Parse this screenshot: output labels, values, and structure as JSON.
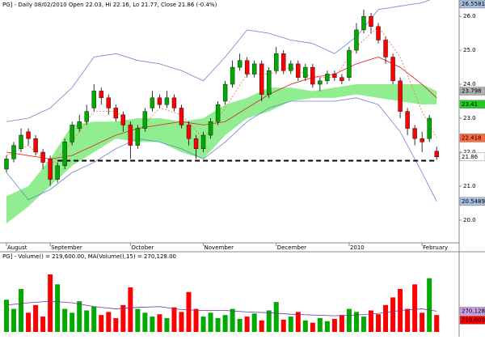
{
  "chart_data": {
    "type": "candlestick",
    "title": "PG] - Daily 08/02/2010 Open 22.03, Hi 22.16, Lo 21.77, Close 21.86 (-0.4%)",
    "categories": [
      "August",
      null,
      null,
      null,
      null,
      null,
      "September",
      null,
      null,
      null,
      null,
      null,
      null,
      null,
      null,
      null,
      null,
      "October",
      null,
      null,
      null,
      null,
      null,
      null,
      null,
      null,
      null,
      "November",
      null,
      null,
      null,
      null,
      null,
      null,
      null,
      null,
      null,
      "December",
      null,
      null,
      null,
      null,
      null,
      null,
      null,
      null,
      null,
      "2010",
      null,
      null,
      null,
      null,
      null,
      null,
      null,
      null,
      null,
      "February",
      null,
      null
    ],
    "open": [
      21.5,
      21.8,
      22.1,
      22.6,
      22.4,
      22.0,
      21.8,
      21.2,
      21.6,
      22.3,
      22.7,
      22.9,
      23.3,
      23.8,
      23.6,
      23.3,
      23.1,
      22.8,
      22.2,
      22.7,
      23.3,
      23.6,
      23.4,
      23.6,
      23.3,
      22.8,
      22.4,
      22.1,
      22.5,
      22.9,
      23.5,
      24.0,
      24.5,
      24.7,
      24.3,
      24.6,
      23.7,
      24.4,
      24.9,
      24.4,
      24.6,
      24.2,
      24.5,
      24.0,
      24.1,
      24.3,
      24.2,
      24.2,
      25.0,
      25.6,
      26.0,
      25.7,
      25.3,
      24.8,
      24.1,
      23.2,
      22.7,
      22.4,
      22.4,
      22.03
    ],
    "high": [
      21.9,
      22.3,
      22.7,
      22.7,
      22.5,
      22.1,
      21.9,
      21.7,
      22.4,
      22.9,
      23.1,
      23.4,
      24.0,
      23.9,
      23.7,
      23.4,
      23.2,
      22.9,
      22.8,
      23.3,
      23.8,
      23.7,
      23.8,
      23.7,
      23.4,
      22.9,
      22.5,
      22.6,
      23.0,
      23.5,
      24.1,
      24.7,
      24.9,
      24.8,
      24.7,
      24.7,
      24.5,
      25.1,
      25.0,
      24.7,
      24.7,
      24.6,
      24.6,
      24.2,
      24.4,
      24.4,
      24.3,
      25.1,
      25.8,
      26.2,
      26.1,
      25.8,
      25.4,
      24.9,
      24.2,
      23.3,
      22.8,
      22.6,
      23.1,
      22.16
    ],
    "low": [
      21.4,
      21.7,
      22.0,
      22.2,
      21.9,
      21.5,
      21.0,
      21.1,
      21.5,
      22.2,
      22.6,
      22.8,
      23.2,
      23.4,
      23.1,
      22.9,
      22.6,
      21.8,
      22.1,
      22.6,
      23.2,
      23.3,
      23.3,
      23.2,
      22.7,
      22.2,
      21.8,
      22.0,
      22.4,
      22.8,
      23.4,
      23.9,
      24.4,
      24.2,
      24.2,
      23.5,
      23.6,
      24.3,
      24.3,
      24.3,
      24.1,
      24.1,
      23.9,
      23.8,
      24.0,
      24.1,
      24.0,
      24.1,
      24.9,
      25.5,
      25.5,
      25.2,
      24.6,
      24.0,
      23.0,
      22.5,
      22.2,
      22.0,
      22.3,
      21.77
    ],
    "close": [
      21.8,
      22.2,
      22.5,
      22.4,
      22.0,
      21.7,
      21.2,
      21.6,
      22.3,
      22.8,
      22.9,
      23.2,
      23.8,
      23.6,
      23.3,
      23.0,
      22.8,
      22.2,
      22.7,
      23.2,
      23.6,
      23.4,
      23.6,
      23.3,
      22.8,
      22.4,
      22.1,
      22.5,
      22.9,
      23.4,
      24.0,
      24.5,
      24.7,
      24.3,
      24.6,
      23.7,
      24.4,
      24.9,
      24.4,
      24.6,
      24.2,
      24.5,
      24.0,
      24.1,
      24.3,
      24.2,
      24.1,
      25.0,
      25.6,
      26.0,
      25.7,
      25.3,
      24.8,
      24.1,
      23.2,
      22.7,
      22.4,
      22.3,
      23.0,
      21.86
    ],
    "up_color": "#00aa00",
    "down_color": "#ff0000",
    "ylim": [
      19.33,
      26.48
    ],
    "yticks": [
      {
        "value": 20,
        "label": "20.0"
      },
      {
        "value": 21,
        "label": "21.0"
      },
      {
        "value": 22,
        "label": "22.0"
      },
      {
        "value": 23,
        "label": "23.0"
      },
      {
        "value": 24,
        "label": "24.0"
      },
      {
        "value": 25,
        "label": "25.0"
      },
      {
        "value": 26,
        "label": "26.0"
      }
    ],
    "overlay_x": [
      0,
      3,
      6,
      9,
      12,
      15,
      18,
      21,
      24,
      27,
      30,
      33,
      36,
      39,
      42,
      45,
      48,
      51,
      54,
      57,
      59
    ],
    "bands": {
      "upper": [
        22.9,
        23.0,
        23.3,
        23.9,
        24.8,
        24.9,
        24.7,
        24.6,
        24.4,
        24.1,
        24.8,
        25.6,
        25.5,
        25.3,
        25.2,
        24.9,
        25.4,
        26.2,
        26.3,
        26.4,
        26.5581
      ],
      "lower": [
        21.4,
        20.6,
        20.9,
        21.4,
        21.7,
        22.1,
        22.4,
        22.3,
        22.1,
        21.8,
        22.3,
        22.9,
        23.3,
        23.5,
        23.5,
        23.5,
        23.6,
        23.4,
        22.6,
        21.4,
        20.5489
      ],
      "ma": [
        22.0,
        21.9,
        21.8,
        21.9,
        22.2,
        22.5,
        22.7,
        22.8,
        22.9,
        22.8,
        22.9,
        23.3,
        23.7,
        24.0,
        24.2,
        24.3,
        24.6,
        24.8,
        24.5,
        24.0,
        23.6
      ],
      "tenkan": [
        21.9,
        22.2,
        21.6,
        22.3,
        23.2,
        23.2,
        22.6,
        23.3,
        23.1,
        22.4,
        23.3,
        24.3,
        24.3,
        24.5,
        24.2,
        24.2,
        25.1,
        25.7,
        24.8,
        23.2,
        22.418
      ],
      "cloud_top": [
        20.7,
        21.0,
        21.8,
        22.8,
        22.9,
        22.9,
        23.0,
        23.0,
        22.9,
        23.0,
        23.4,
        23.6,
        23.9,
        23.9,
        23.8,
        23.9,
        24.0,
        24.0,
        24.0,
        24.0,
        23.798
      ],
      "cloud_bottom": [
        19.9,
        20.4,
        21.0,
        21.6,
        22.0,
        22.4,
        22.3,
        22.3,
        22.0,
        21.8,
        22.5,
        23.0,
        23.2,
        23.5,
        23.6,
        23.6,
        23.7,
        23.6,
        23.5,
        23.4,
        23.41
      ]
    },
    "band_color": "#6d83d0",
    "ma_color": "#e02020",
    "tenkan_color": "#ff6a3d",
    "cloud_color": "#90ee90",
    "cloud_top_tag": "#b0b0b0",
    "cloud_bottom_tag": "#22cc22",
    "close_tag": "#ffffff",
    "upper_tag": "#a9c0e0",
    "lower_tag": "#a9c0e0",
    "support_level": 21.75,
    "volume": {
      "title": "PG] - Volume() = 219,600.00, MA(Volume(),15) = 270,128.00",
      "values": [
        420000,
        300000,
        560000,
        250000,
        350000,
        200000,
        750000,
        620000,
        300000,
        250000,
        400000,
        280000,
        330000,
        220000,
        260000,
        180000,
        350000,
        580000,
        300000,
        250000,
        200000,
        230000,
        180000,
        320000,
        260000,
        520000,
        300000,
        200000,
        250000,
        180000,
        220000,
        300000,
        170000,
        200000,
        240000,
        150000,
        280000,
        390000,
        160000,
        200000,
        260000,
        150000,
        120000,
        180000,
        140000,
        170000,
        220000,
        300000,
        260000,
        200000,
        280000,
        230000,
        350000,
        450000,
        560000,
        300000,
        620000,
        250000,
        700000,
        219600
      ],
      "value_labels_last": "219,600",
      "ma": [
        350000,
        380000,
        400000,
        380000,
        330000,
        300000,
        320000,
        330000,
        290000,
        280000,
        280000,
        260000,
        250000,
        230000,
        220000,
        210000,
        220000,
        240000,
        280000,
        300000,
        270128
      ],
      "ma_label": "270,128",
      "ma_color": "#7030a0",
      "ylim": [
        0,
        950000
      ]
    }
  }
}
